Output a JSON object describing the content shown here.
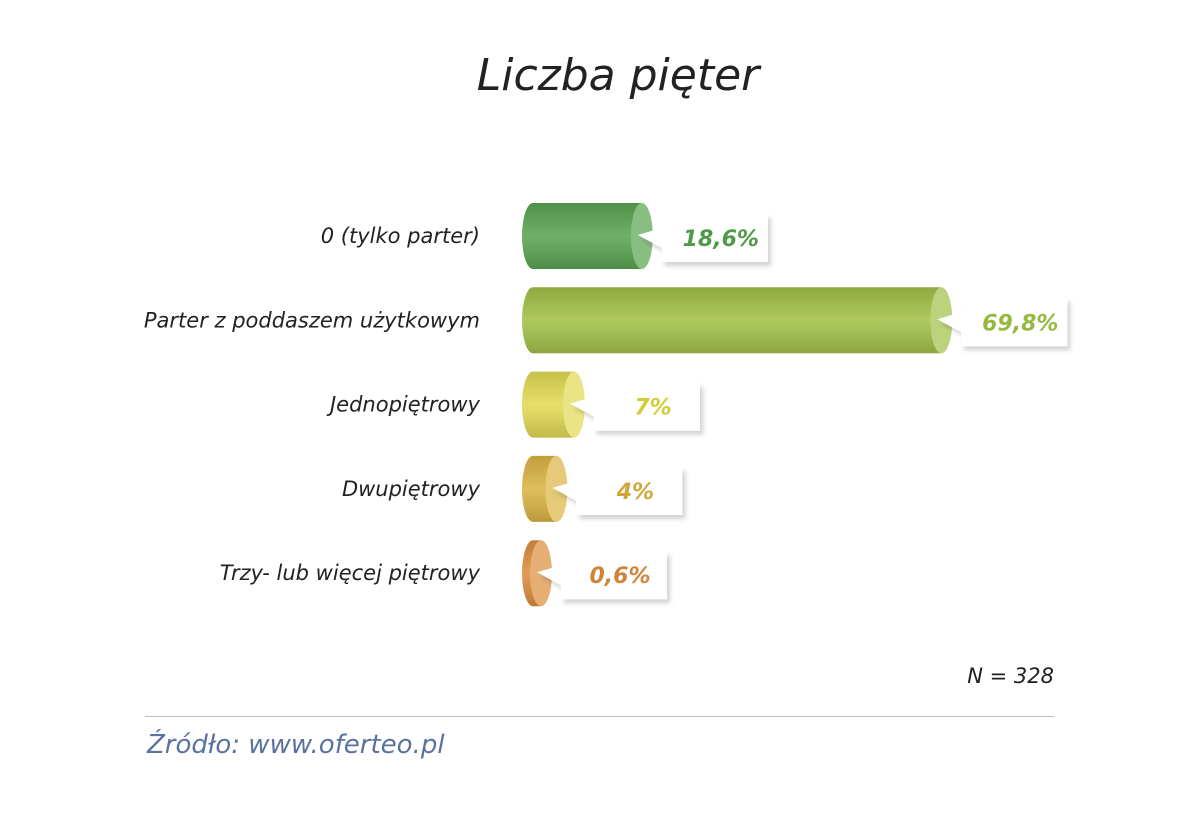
{
  "chart_data": {
    "type": "bar",
    "orientation": "horizontal",
    "title": "Liczba pięter",
    "categories": [
      "0 (tylko parter)",
      "Parter z poddaszem użytkowym",
      "Jednopiętrowy",
      "Dwupiętrowy",
      "Trzy- lub więcej piętrowy"
    ],
    "values": [
      18.6,
      69.8,
      7,
      4,
      0.6
    ],
    "value_labels": [
      "18,6%",
      "69,8%",
      "7%",
      "4%",
      "0,6%"
    ],
    "colors": [
      "#5aa552",
      "#a3c14a",
      "#e2da55",
      "#dcb445",
      "#dd8f3e"
    ],
    "label_colors": [
      "#4f9a48",
      "#96b83e",
      "#d4cb3a",
      "#d2a73a",
      "#d0843a"
    ],
    "xlabel": "",
    "ylabel": "",
    "xlim": [
      0,
      100
    ],
    "grid": false,
    "legend": "none"
  },
  "note": "N = 328",
  "source": "Źródło: www.oferteo.pl"
}
